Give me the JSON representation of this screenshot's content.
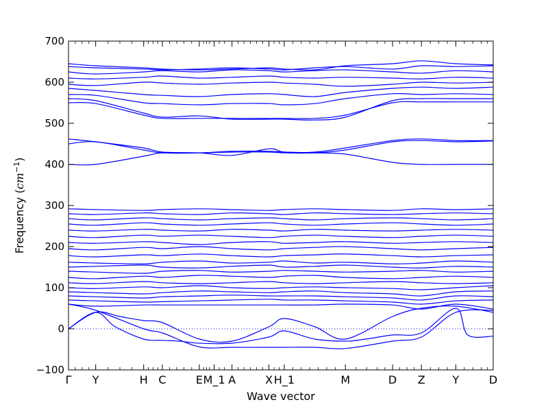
{
  "chart_data": {
    "type": "line",
    "title": "",
    "xlabel": "Wave vector",
    "ylabel_prefix": "Frequency (",
    "ylabel_math": "cm",
    "ylabel_exp": "−1",
    "ylabel_suffix": ")",
    "ylim": [
      -100,
      700
    ],
    "yticks": [
      -100,
      0,
      100,
      200,
      300,
      400,
      500,
      600,
      700
    ],
    "grid": false,
    "legend": "none",
    "zero_line": 0,
    "kpoints": [
      {
        "label": "Γ",
        "x": 0.0
      },
      {
        "label": "Y",
        "x": 0.064
      },
      {
        "label": "H",
        "x": 0.177
      },
      {
        "label": "C",
        "x": 0.221
      },
      {
        "label": "E",
        "x": 0.308
      },
      {
        "label": "M_1",
        "x": 0.343
      },
      {
        "label": "A",
        "x": 0.385
      },
      {
        "label": "X",
        "x": 0.472
      },
      {
        "label": "H_1",
        "x": 0.508
      },
      {
        "label": "M",
        "x": 0.652
      },
      {
        "label": "D",
        "x": 0.763
      },
      {
        "label": "Z",
        "x": 0.831
      },
      {
        "label": "Y",
        "x": 0.912
      },
      {
        "label": "D",
        "x": 1.0
      }
    ],
    "minor_xticks": [
      0.016,
      0.032,
      0.048,
      0.093,
      0.121,
      0.149,
      0.188,
      0.199,
      0.21,
      0.238,
      0.255,
      0.272,
      0.29,
      0.318,
      0.325,
      0.332,
      0.355,
      0.367,
      0.399,
      0.413,
      0.428,
      0.443,
      0.457,
      0.484,
      0.496,
      0.528,
      0.548,
      0.568,
      0.588,
      0.608,
      0.628,
      0.677,
      0.702,
      0.727,
      0.745,
      0.78,
      0.797,
      0.814,
      0.852,
      0.872,
      0.892,
      0.932,
      0.952,
      0.972,
      0.986
    ],
    "line_color": "#0000ff",
    "series": [
      {
        "x": [
          0,
          0.064,
          0.12,
          0.177,
          0.221,
          0.308,
          0.385,
          0.472,
          0.508,
          0.58,
          0.652,
          0.763,
          0.831,
          0.912,
          1.0
        ],
        "y": [
          0,
          40,
          30,
          20,
          15,
          -25,
          -30,
          5,
          25,
          5,
          -25,
          30,
          50,
          55,
          40
        ]
      },
      {
        "x": [
          0,
          0.064,
          0.11,
          0.177,
          0.221,
          0.26,
          0.308,
          0.385,
          0.472,
          0.508,
          0.58,
          0.652,
          0.7,
          0.763,
          0.831,
          0.912,
          0.94,
          1.0
        ],
        "y": [
          0,
          40,
          5,
          -25,
          -28,
          -30,
          -35,
          -35,
          -20,
          -5,
          -25,
          -30,
          -25,
          -15,
          -10,
          50,
          -15,
          -18
        ]
      },
      {
        "x": [
          0,
          0.064,
          0.177,
          0.221,
          0.308,
          0.385,
          0.472,
          0.508,
          0.58,
          0.652,
          0.763,
          0.831,
          0.912,
          1.0
        ],
        "y": [
          60,
          45,
          0,
          -10,
          -44,
          -45,
          -45,
          -45,
          -45,
          -48,
          -30,
          -20,
          40,
          45
        ]
      },
      {
        "x": [
          0,
          0.064,
          0.177,
          0.221,
          0.308,
          0.385,
          0.472,
          0.508,
          0.58,
          0.652,
          0.763,
          0.831,
          0.912,
          1.0
        ],
        "y": [
          60,
          55,
          58,
          58,
          58,
          58,
          58,
          58,
          58,
          60,
          58,
          48,
          60,
          48
        ]
      },
      {
        "x": [
          0,
          0.064,
          0.177,
          0.221,
          0.308,
          0.385,
          0.472,
          0.508,
          0.58,
          0.652,
          0.763,
          0.831,
          0.912,
          1.0
        ],
        "y": [
          70,
          68,
          65,
          66,
          68,
          70,
          72,
          70,
          70,
          68,
          65,
          60,
          68,
          70
        ]
      },
      {
        "x": [
          0,
          0.064,
          0.177,
          0.221,
          0.308,
          0.385,
          0.472,
          0.508,
          0.58,
          0.652,
          0.763,
          0.831,
          0.912,
          1.0
        ],
        "y": [
          80,
          78,
          75,
          78,
          80,
          82,
          80,
          80,
          80,
          78,
          75,
          70,
          80,
          78
        ]
      },
      {
        "x": [
          0,
          0.064,
          0.177,
          0.221,
          0.308,
          0.385,
          0.472,
          0.508,
          0.58,
          0.652,
          0.763,
          0.831,
          0.912,
          1.0
        ],
        "y": [
          90,
          88,
          85,
          88,
          92,
          90,
          88,
          90,
          92,
          88,
          85,
          80,
          90,
          92
        ]
      },
      {
        "x": [
          0,
          0.064,
          0.177,
          0.221,
          0.308,
          0.385,
          0.472,
          0.508,
          0.58,
          0.652,
          0.763,
          0.831,
          0.912,
          1.0
        ],
        "y": [
          100,
          98,
          102,
          100,
          105,
          100,
          98,
          100,
          102,
          100,
          98,
          95,
          100,
          105
        ]
      },
      {
        "x": [
          0,
          0.064,
          0.177,
          0.221,
          0.308,
          0.385,
          0.472,
          0.508,
          0.58,
          0.652,
          0.763,
          0.831,
          0.912,
          1.0
        ],
        "y": [
          112,
          110,
          115,
          112,
          110,
          112,
          115,
          112,
          110,
          112,
          115,
          112,
          110,
          112
        ]
      },
      {
        "x": [
          0,
          0.064,
          0.177,
          0.221,
          0.308,
          0.385,
          0.472,
          0.508,
          0.58,
          0.652,
          0.763,
          0.831,
          0.912,
          1.0
        ],
        "y": [
          125,
          122,
          128,
          125,
          130,
          128,
          125,
          128,
          130,
          125,
          122,
          125,
          128,
          125
        ]
      },
      {
        "x": [
          0,
          0.064,
          0.177,
          0.221,
          0.308,
          0.385,
          0.472,
          0.508,
          0.58,
          0.652,
          0.763,
          0.831,
          0.912,
          1.0
        ],
        "y": [
          140,
          138,
          135,
          140,
          142,
          138,
          140,
          142,
          140,
          138,
          140,
          142,
          138,
          140
        ]
      },
      {
        "x": [
          0,
          0.064,
          0.177,
          0.221,
          0.308,
          0.385,
          0.472,
          0.508,
          0.58,
          0.652,
          0.763,
          0.831,
          0.912,
          1.0
        ],
        "y": [
          150,
          152,
          155,
          150,
          148,
          152,
          155,
          150,
          152,
          155,
          150,
          148,
          152,
          150
        ]
      },
      {
        "x": [
          0,
          0.064,
          0.177,
          0.221,
          0.308,
          0.385,
          0.472,
          0.508,
          0.58,
          0.652,
          0.763,
          0.831,
          0.912,
          1.0
        ],
        "y": [
          162,
          160,
          158,
          162,
          165,
          160,
          162,
          165,
          160,
          162,
          158,
          160,
          165,
          162
        ]
      },
      {
        "x": [
          0,
          0.064,
          0.177,
          0.221,
          0.308,
          0.385,
          0.472,
          0.508,
          0.58,
          0.652,
          0.763,
          0.831,
          0.912,
          1.0
        ],
        "y": [
          178,
          175,
          180,
          178,
          182,
          178,
          175,
          178,
          180,
          182,
          178,
          175,
          178,
          180
        ]
      },
      {
        "x": [
          0,
          0.064,
          0.177,
          0.221,
          0.308,
          0.385,
          0.472,
          0.508,
          0.58,
          0.652,
          0.763,
          0.831,
          0.912,
          1.0
        ],
        "y": [
          195,
          192,
          198,
          195,
          200,
          195,
          192,
          195,
          198,
          200,
          195,
          192,
          195,
          198
        ]
      },
      {
        "x": [
          0,
          0.064,
          0.177,
          0.221,
          0.308,
          0.385,
          0.472,
          0.508,
          0.58,
          0.652,
          0.763,
          0.831,
          0.912,
          1.0
        ],
        "y": [
          210,
          208,
          212,
          210,
          205,
          210,
          212,
          208,
          210,
          212,
          208,
          210,
          212,
          210
        ]
      },
      {
        "x": [
          0,
          0.064,
          0.177,
          0.221,
          0.308,
          0.385,
          0.472,
          0.508,
          0.58,
          0.652,
          0.763,
          0.831,
          0.912,
          1.0
        ],
        "y": [
          225,
          222,
          228,
          225,
          228,
          225,
          222,
          225,
          228,
          225,
          222,
          225,
          228,
          225
        ]
      },
      {
        "x": [
          0,
          0.064,
          0.177,
          0.221,
          0.308,
          0.385,
          0.472,
          0.508,
          0.58,
          0.652,
          0.763,
          0.831,
          0.912,
          1.0
        ],
        "y": [
          240,
          238,
          242,
          240,
          238,
          242,
          240,
          238,
          242,
          240,
          238,
          240,
          242,
          240
        ]
      },
      {
        "x": [
          0,
          0.064,
          0.177,
          0.221,
          0.308,
          0.385,
          0.472,
          0.508,
          0.58,
          0.652,
          0.763,
          0.831,
          0.912,
          1.0
        ],
        "y": [
          255,
          252,
          258,
          255,
          252,
          255,
          258,
          255,
          252,
          255,
          258,
          255,
          252,
          255
        ]
      },
      {
        "x": [
          0,
          0.064,
          0.177,
          0.221,
          0.308,
          0.385,
          0.472,
          0.508,
          0.58,
          0.652,
          0.763,
          0.831,
          0.912,
          1.0
        ],
        "y": [
          268,
          265,
          270,
          268,
          265,
          268,
          270,
          268,
          265,
          268,
          270,
          268,
          265,
          268
        ]
      },
      {
        "x": [
          0,
          0.064,
          0.177,
          0.221,
          0.308,
          0.385,
          0.472,
          0.508,
          0.58,
          0.652,
          0.763,
          0.831,
          0.912,
          1.0
        ],
        "y": [
          280,
          278,
          282,
          280,
          278,
          282,
          280,
          278,
          282,
          280,
          278,
          280,
          282,
          280
        ]
      },
      {
        "x": [
          0,
          0.064,
          0.177,
          0.221,
          0.308,
          0.385,
          0.472,
          0.508,
          0.58,
          0.652,
          0.763,
          0.831,
          0.912,
          1.0
        ],
        "y": [
          292,
          290,
          288,
          290,
          292,
          290,
          288,
          290,
          292,
          290,
          288,
          292,
          290,
          292
        ]
      },
      {
        "x": [
          0,
          0.064,
          0.177,
          0.221,
          0.308,
          0.385,
          0.472,
          0.508,
          0.58,
          0.652,
          0.763,
          0.831,
          0.912,
          1.0
        ],
        "y": [
          400,
          400,
          420,
          428,
          428,
          430,
          430,
          428,
          428,
          435,
          455,
          458,
          455,
          457
        ]
      },
      {
        "x": [
          0,
          0.064,
          0.177,
          0.221,
          0.308,
          0.385,
          0.472,
          0.508,
          0.58,
          0.652,
          0.763,
          0.831,
          0.912,
          1.0
        ],
        "y": [
          450,
          455,
          435,
          428,
          428,
          432,
          432,
          430,
          428,
          425,
          405,
          400,
          400,
          400
        ]
      },
      {
        "x": [
          0,
          0.064,
          0.177,
          0.221,
          0.308,
          0.385,
          0.472,
          0.508,
          0.58,
          0.652,
          0.763,
          0.831,
          0.912,
          1.0
        ],
        "y": [
          462,
          455,
          440,
          430,
          428,
          422,
          438,
          430,
          430,
          440,
          458,
          462,
          458,
          458
        ]
      },
      {
        "x": [
          0,
          0.064,
          0.177,
          0.221,
          0.308,
          0.385,
          0.472,
          0.508,
          0.58,
          0.652,
          0.763,
          0.831,
          0.912,
          1.0
        ],
        "y": [
          550,
          548,
          520,
          512,
          512,
          512,
          512,
          512,
          512,
          520,
          550,
          552,
          552,
          552
        ]
      },
      {
        "x": [
          0,
          0.064,
          0.177,
          0.221,
          0.308,
          0.385,
          0.472,
          0.508,
          0.58,
          0.652,
          0.763,
          0.831,
          0.912,
          1.0
        ],
        "y": [
          560,
          555,
          525,
          515,
          518,
          510,
          510,
          510,
          508,
          515,
          555,
          560,
          560,
          560
        ]
      },
      {
        "x": [
          0,
          0.064,
          0.177,
          0.221,
          0.308,
          0.385,
          0.472,
          0.508,
          0.58,
          0.652,
          0.763,
          0.831,
          0.912,
          1.0
        ],
        "y": [
          570,
          568,
          550,
          548,
          545,
          548,
          548,
          545,
          548,
          560,
          572,
          570,
          572,
          570
        ]
      },
      {
        "x": [
          0,
          0.064,
          0.177,
          0.221,
          0.308,
          0.385,
          0.472,
          0.508,
          0.58,
          0.652,
          0.763,
          0.831,
          0.912,
          1.0
        ],
        "y": [
          585,
          580,
          570,
          568,
          565,
          570,
          572,
          570,
          565,
          575,
          585,
          588,
          585,
          588
        ]
      },
      {
        "x": [
          0,
          0.064,
          0.177,
          0.221,
          0.308,
          0.385,
          0.472,
          0.508,
          0.58,
          0.652,
          0.763,
          0.831,
          0.912,
          1.0
        ],
        "y": [
          595,
          592,
          600,
          598,
          595,
          598,
          600,
          598,
          595,
          590,
          595,
          600,
          598,
          600
        ]
      },
      {
        "x": [
          0,
          0.064,
          0.177,
          0.221,
          0.308,
          0.385,
          0.472,
          0.508,
          0.58,
          0.652,
          0.763,
          0.831,
          0.912,
          1.0
        ],
        "y": [
          610,
          608,
          612,
          615,
          610,
          612,
          615,
          612,
          610,
          612,
          610,
          608,
          612,
          610
        ]
      },
      {
        "x": [
          0,
          0.064,
          0.177,
          0.221,
          0.308,
          0.385,
          0.472,
          0.508,
          0.58,
          0.652,
          0.763,
          0.831,
          0.912,
          1.0
        ],
        "y": [
          625,
          620,
          625,
          628,
          625,
          630,
          628,
          625,
          628,
          630,
          625,
          622,
          628,
          625
        ]
      },
      {
        "x": [
          0,
          0.064,
          0.177,
          0.221,
          0.308,
          0.385,
          0.472,
          0.508,
          0.58,
          0.652,
          0.763,
          0.831,
          0.912,
          1.0
        ],
        "y": [
          638,
          635,
          632,
          630,
          632,
          635,
          632,
          630,
          635,
          638,
          632,
          640,
          638,
          640
        ]
      },
      {
        "x": [
          0,
          0.064,
          0.177,
          0.221,
          0.308,
          0.385,
          0.472,
          0.508,
          0.58,
          0.652,
          0.763,
          0.831,
          0.912,
          1.0
        ],
        "y": [
          645,
          640,
          635,
          632,
          630,
          632,
          635,
          632,
          630,
          640,
          645,
          652,
          645,
          642
        ]
      }
    ]
  }
}
